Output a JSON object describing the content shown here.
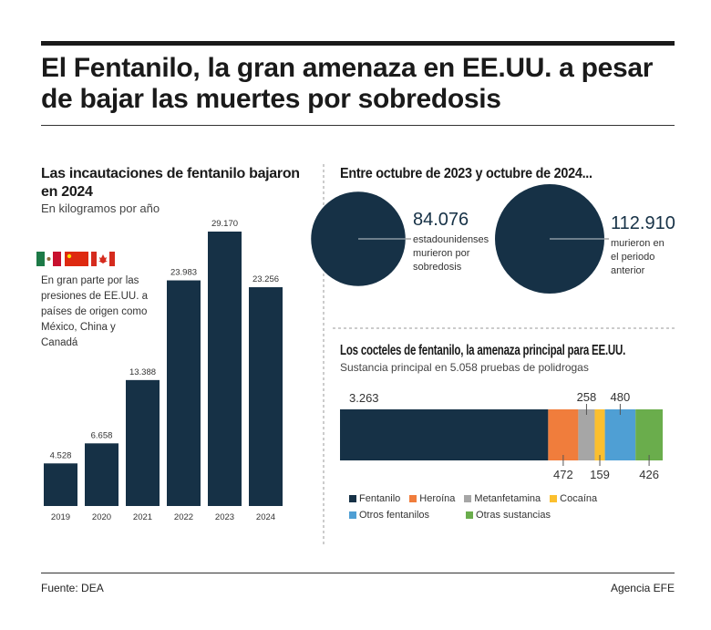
{
  "title": "El Fentanilo, la gran amenaza en EE.UU. a pesar de bajar las muertes por sobredosis",
  "chart_data": [
    {
      "type": "bar",
      "title": "Las incautaciones de fentanilo bajaron en 2024",
      "subtitle": "En kilogramos por año",
      "categories": [
        "2019",
        "2020",
        "2021",
        "2022",
        "2023",
        "2024"
      ],
      "values": [
        4528,
        6658,
        13388,
        23983,
        29170,
        23256
      ],
      "value_labels": [
        "4.528",
        "6.658",
        "13.388",
        "23.983",
        "29.170",
        "23.256"
      ],
      "color": "#163146",
      "grid": false,
      "ylim": [
        0,
        29170
      ]
    },
    {
      "type": "pie",
      "title": "Entre octubre de 2023 y octubre de 2024...",
      "values": [
        84076,
        112910
      ],
      "value_labels": [
        "84.076",
        "112.910"
      ],
      "labels": [
        "estadounidenses murieron por sobredosis",
        "murieron en el periodo anterior"
      ],
      "color": "#163146"
    },
    {
      "type": "bar",
      "stacked": true,
      "orientation": "horizontal",
      "title": "Los cocteles de fentanilo, la amenaza principal para EE.UU.",
      "subtitle": "Sustancia principal en 5.058 pruebas de polidrogas",
      "series": [
        {
          "name": "Fentanilo",
          "value": 3263,
          "label": "3.263",
          "color": "#163146"
        },
        {
          "name": "Heroína",
          "value": 472,
          "label": "472",
          "color": "#f07d3c"
        },
        {
          "name": "Metanfetamina",
          "value": 258,
          "label": "258",
          "color": "#a6a6a6"
        },
        {
          "name": "Cocaína",
          "value": 159,
          "label": "159",
          "color": "#fbbf2e"
        },
        {
          "name": "Otros fentanilos",
          "value": 480,
          "label": "480",
          "color": "#4f9fd4"
        },
        {
          "name": "Otras sustancias",
          "value": 426,
          "label": "426",
          "color": "#6aad4c"
        }
      ],
      "legend": "bottom"
    }
  ],
  "note": "En gran parte por las presiones de EE.UU. a países de origen como México, China y Canadá",
  "flags": [
    "mexico-flag",
    "china-flag",
    "canada-flag"
  ],
  "footer": {
    "source": "Fuente: DEA",
    "agency": "Agencia EFE"
  }
}
